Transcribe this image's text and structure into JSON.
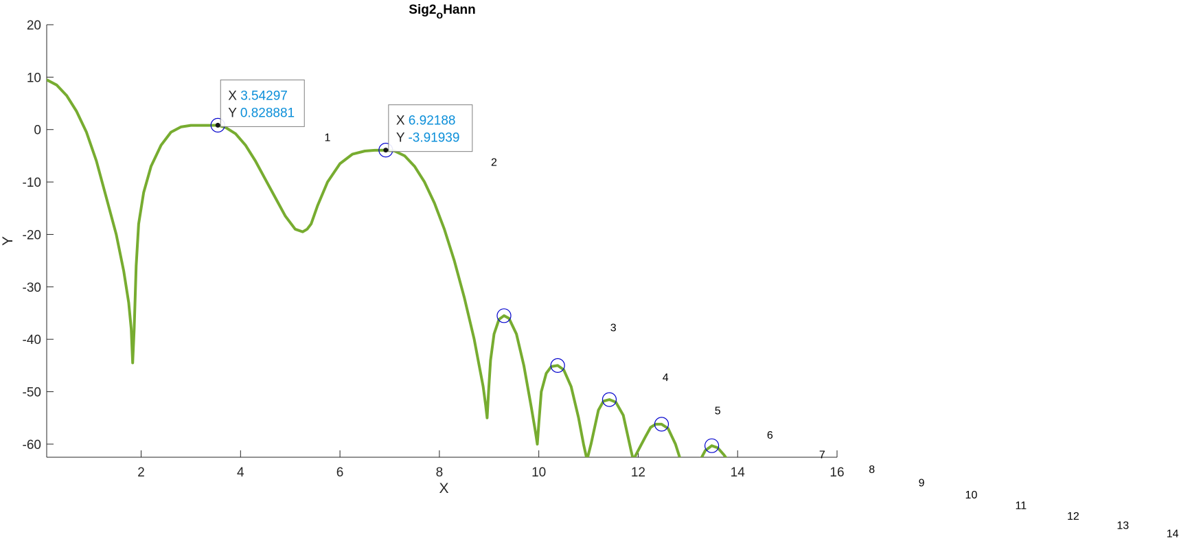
{
  "chart_data": {
    "type": "line",
    "title": "Sig2",
    "title_subscript": "o",
    "title_suffix": "Hann",
    "xlabel": "X",
    "ylabel": "Y",
    "xlim": [
      0.1,
      16
    ],
    "ylim": [
      -62.5,
      20
    ],
    "xticks": [
      2,
      4,
      6,
      8,
      10,
      12,
      14,
      16
    ],
    "yticks": [
      20,
      10,
      0,
      -10,
      -20,
      -30,
      -40,
      -50,
      -60
    ],
    "grid": false,
    "line_color": "#77ac30",
    "marker_color": "#0000cc",
    "series": [
      {
        "x": [
          0.1,
          0.3,
          0.5,
          0.7,
          0.9,
          1.1,
          1.3,
          1.5,
          1.65,
          1.75,
          1.8,
          1.83,
          1.86,
          1.9,
          1.95,
          2.05,
          2.2,
          2.4,
          2.6,
          2.8,
          3.0,
          3.2,
          3.4,
          3.54,
          3.7,
          3.9,
          4.1,
          4.3,
          4.5,
          4.7,
          4.9,
          5.1,
          5.25,
          5.34,
          5.42,
          5.55,
          5.75,
          6.0,
          6.25,
          6.5,
          6.7,
          6.92,
          7.1,
          7.3,
          7.5,
          7.7,
          7.9,
          8.1,
          8.3,
          8.5,
          8.7,
          8.8,
          8.88,
          8.93,
          8.96,
          8.99,
          9.03,
          9.1,
          9.2,
          9.3,
          9.4,
          9.55,
          9.7,
          9.85,
          9.93,
          9.97,
          10.0,
          10.05,
          10.15,
          10.25,
          10.38,
          10.5,
          10.65,
          10.8,
          10.9,
          10.97,
          11.05,
          11.2,
          11.3,
          11.42,
          11.55,
          11.7,
          11.85,
          11.9,
          12.15,
          12.25,
          12.35,
          12.47,
          12.6,
          12.75,
          12.85,
          13.25,
          13.35,
          13.48,
          13.6,
          13.72,
          13.8
        ],
        "y": [
          9.5,
          8.5,
          6.5,
          3.5,
          -0.5,
          -6,
          -13,
          -20,
          -27,
          -33,
          -38,
          -44.5,
          -38,
          -26,
          -18,
          -12,
          -7,
          -3,
          -0.5,
          0.5,
          0.8,
          0.8,
          0.8,
          0.83,
          0.4,
          -0.8,
          -3,
          -6,
          -9.5,
          -13,
          -16.5,
          -19,
          -19.5,
          -19,
          -18,
          -14.5,
          -10,
          -6.5,
          -4.7,
          -4.1,
          -3.95,
          -3.92,
          -4.1,
          -5,
          -7,
          -10,
          -14,
          -19,
          -25,
          -32,
          -40,
          -45,
          -49,
          -52.5,
          -55,
          -50,
          -44,
          -39,
          -36.2,
          -35.5,
          -36,
          -39,
          -45,
          -53,
          -57.5,
          -60,
          -56,
          -50,
          -46.5,
          -45.2,
          -45,
          -45.8,
          -49,
          -55,
          -60,
          -63,
          -60,
          -53.5,
          -51.8,
          -51.5,
          -52,
          -54.5,
          -61,
          -63,
          -58.5,
          -56.8,
          -56.2,
          -56.2,
          -57,
          -60,
          -63,
          -63,
          -61.2,
          -60.3,
          -60.7,
          -62,
          -63
        ]
      }
    ],
    "peak_markers": [
      {
        "x": 3.54297,
        "y": 0.828881
      },
      {
        "x": 6.92188,
        "y": -3.91939
      },
      {
        "x": 9.3,
        "y": -35.5
      },
      {
        "x": 10.38,
        "y": -45
      },
      {
        "x": 11.42,
        "y": -51.5
      },
      {
        "x": 12.47,
        "y": -56.2
      },
      {
        "x": 13.48,
        "y": -60.3
      }
    ],
    "datatips": [
      {
        "x_key": "X",
        "x_value": "3.54297",
        "y_key": "Y",
        "y_value": "0.828881"
      },
      {
        "x_key": "X",
        "x_value": "6.92188",
        "y_key": "Y",
        "y_value": "-3.91939"
      }
    ],
    "annotations": [
      {
        "text": "1",
        "x": 5.75,
        "y": -1.4
      },
      {
        "text": "2",
        "x": 9.1,
        "y": -6.1
      },
      {
        "text": "3",
        "x": 11.5,
        "y": -37.7
      },
      {
        "text": "4",
        "x": 12.55,
        "y": -47.2
      },
      {
        "text": "5",
        "x": 13.6,
        "y": -53.5
      },
      {
        "text": "6",
        "x": 14.65,
        "y": -58.2
      },
      {
        "text": "7",
        "x": 15.7,
        "y": -61.9
      },
      {
        "text": "8",
        "x": 16.7,
        "y": -64.7
      },
      {
        "text": "9",
        "x": 17.7,
        "y": -67.3
      },
      {
        "text": "10",
        "x": 18.7,
        "y": -69.6
      },
      {
        "text": "11",
        "x": 19.7,
        "y": -71.6
      },
      {
        "text": "12",
        "x": 20.75,
        "y": -73.6
      },
      {
        "text": "13",
        "x": 21.75,
        "y": -75.4
      },
      {
        "text": "14",
        "x": 22.75,
        "y": -77.0
      }
    ]
  }
}
